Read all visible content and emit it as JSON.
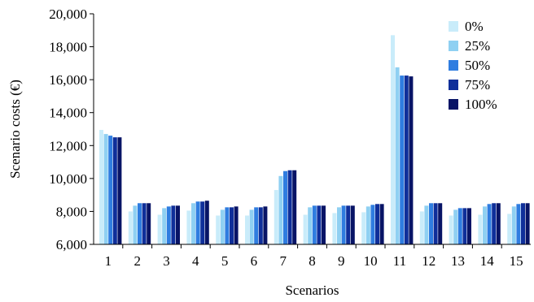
{
  "chart_data": {
    "type": "bar",
    "xlabel": "Scenarios",
    "ylabel": "Scenario costs (€)",
    "ylim": [
      6000,
      20000
    ],
    "y_ticks": [
      "6,000",
      "8,000",
      "10,000",
      "12,000",
      "14,000",
      "16,000",
      "18,000",
      "20,000"
    ],
    "y_tick_values": [
      6000,
      8000,
      10000,
      12000,
      14000,
      16000,
      18000,
      20000
    ],
    "categories": [
      "1",
      "2",
      "3",
      "4",
      "5",
      "6",
      "7",
      "8",
      "9",
      "10",
      "11",
      "12",
      "13",
      "14",
      "15"
    ],
    "legend_position": "top-right",
    "grid": false,
    "series": [
      {
        "name": "0%",
        "color": "#c9ecfa",
        "values": [
          12950,
          8000,
          7800,
          8050,
          7750,
          7750,
          9300,
          7800,
          7900,
          7950,
          18700,
          8000,
          7750,
          7800,
          7850
        ]
      },
      {
        "name": "25%",
        "color": "#8fd0f2",
        "values": [
          12700,
          8350,
          8200,
          8500,
          8100,
          8100,
          10150,
          8250,
          8250,
          8300,
          16750,
          8350,
          8100,
          8300,
          8300
        ]
      },
      {
        "name": "50%",
        "color": "#2f7de0",
        "values": [
          12600,
          8500,
          8300,
          8600,
          8250,
          8250,
          10450,
          8350,
          8350,
          8400,
          16250,
          8500,
          8200,
          8450,
          8450
        ]
      },
      {
        "name": "75%",
        "color": "#0f2f9a",
        "values": [
          12500,
          8500,
          8350,
          8600,
          8250,
          8250,
          10500,
          8350,
          8350,
          8450,
          16250,
          8500,
          8200,
          8500,
          8500
        ]
      },
      {
        "name": "100%",
        "color": "#081466",
        "values": [
          12500,
          8500,
          8350,
          8650,
          8300,
          8300,
          10500,
          8350,
          8350,
          8450,
          16200,
          8500,
          8200,
          8500,
          8500
        ]
      }
    ]
  }
}
